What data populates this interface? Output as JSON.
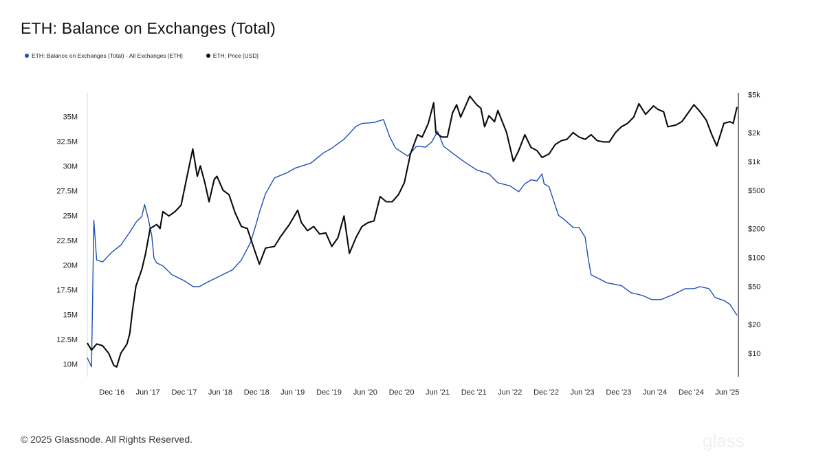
{
  "title": "ETH: Balance on Exchanges (Total)",
  "footer": "© 2025 Glassnode. All Rights Reserved.",
  "colors": {
    "balance": "#1c4fb5",
    "price": "#0a0a0a"
  },
  "chart_data": {
    "type": "line",
    "title": "ETH: Balance on Exchanges (Total)",
    "legend_position": "top-left",
    "grid": false,
    "x_ticks": [
      "Dec '16",
      "Jun '17",
      "Dec '17",
      "Jun '18",
      "Dec '18",
      "Jun '19",
      "Dec '19",
      "Jun '20",
      "Dec '20",
      "Jun '21",
      "Dec '21",
      "Jun '22",
      "Dec '22",
      "Jun '23",
      "Dec '23",
      "Jun '24",
      "Dec '24",
      "Jun '25"
    ],
    "x_range": [
      "2016-07-30",
      "2025-07-20"
    ],
    "y_left": {
      "scale": "linear",
      "range": [
        8700000,
        37400000
      ],
      "ticks": [
        10000000,
        12500000,
        15000000,
        17500000,
        20000000,
        22500000,
        25000000,
        27500000,
        30000000,
        32500000,
        35000000
      ],
      "tick_labels": [
        "10M",
        "12.5M",
        "15M",
        "17.5M",
        "20M",
        "22.5M",
        "25M",
        "27.5M",
        "30M",
        "32.5M",
        "35M"
      ]
    },
    "y_right": {
      "scale": "log",
      "range": [
        5.7,
        5200
      ],
      "ticks": [
        10,
        20,
        50,
        100,
        200,
        500,
        1000,
        2000,
        5000
      ],
      "tick_labels": [
        "$10",
        "$20",
        "$50",
        "$100",
        "$200",
        "$500",
        "$1k",
        "$2k",
        "$5k"
      ]
    },
    "series": [
      {
        "name": "ETH: Balance on Exchanges (Total) - All Exchanges [ETH]",
        "axis": "left",
        "points": [
          [
            "2016-07-30",
            10600000
          ],
          [
            "2016-08-20",
            9700000
          ],
          [
            "2016-09-01",
            24500000
          ],
          [
            "2016-09-15",
            20500000
          ],
          [
            "2016-10-15",
            20300000
          ],
          [
            "2016-12-01",
            21300000
          ],
          [
            "2017-01-15",
            22000000
          ],
          [
            "2017-03-01",
            23300000
          ],
          [
            "2017-04-01",
            24300000
          ],
          [
            "2017-05-01",
            24900000
          ],
          [
            "2017-05-15",
            26100000
          ],
          [
            "2017-06-01",
            24800000
          ],
          [
            "2017-06-20",
            23000000
          ],
          [
            "2017-07-01",
            20700000
          ],
          [
            "2017-07-15",
            20200000
          ],
          [
            "2017-08-15",
            19900000
          ],
          [
            "2017-10-01",
            19000000
          ],
          [
            "2017-12-01",
            18400000
          ],
          [
            "2018-01-15",
            17800000
          ],
          [
            "2018-02-15",
            17800000
          ],
          [
            "2018-04-01",
            18300000
          ],
          [
            "2018-06-01",
            18900000
          ],
          [
            "2018-08-01",
            19500000
          ],
          [
            "2018-09-15",
            20500000
          ],
          [
            "2018-11-01",
            22300000
          ],
          [
            "2018-12-01",
            24300000
          ],
          [
            "2018-12-15",
            25300000
          ],
          [
            "2019-01-15",
            27200000
          ],
          [
            "2019-03-01",
            28800000
          ],
          [
            "2019-05-01",
            29300000
          ],
          [
            "2019-06-15",
            29800000
          ],
          [
            "2019-09-01",
            30300000
          ],
          [
            "2019-11-01",
            31300000
          ],
          [
            "2019-12-15",
            31800000
          ],
          [
            "2020-02-15",
            32700000
          ],
          [
            "2020-04-15",
            34000000
          ],
          [
            "2020-05-15",
            34300000
          ],
          [
            "2020-07-15",
            34400000
          ],
          [
            "2020-09-01",
            34700000
          ],
          [
            "2020-10-01",
            33000000
          ],
          [
            "2020-11-01",
            31800000
          ],
          [
            "2020-12-01",
            31400000
          ],
          [
            "2021-01-01",
            31000000
          ],
          [
            "2021-02-15",
            32000000
          ],
          [
            "2021-04-01",
            31900000
          ],
          [
            "2021-05-01",
            32400000
          ],
          [
            "2021-06-01",
            33500000
          ],
          [
            "2021-07-01",
            32000000
          ],
          [
            "2021-08-15",
            31300000
          ],
          [
            "2021-10-15",
            30400000
          ],
          [
            "2021-12-15",
            29600000
          ],
          [
            "2022-02-15",
            29200000
          ],
          [
            "2022-04-01",
            28300000
          ],
          [
            "2022-06-01",
            28000000
          ],
          [
            "2022-07-15",
            27400000
          ],
          [
            "2022-08-15",
            28200000
          ],
          [
            "2022-09-15",
            28600000
          ],
          [
            "2022-10-15",
            28500000
          ],
          [
            "2022-11-10",
            29200000
          ],
          [
            "2022-11-20",
            28200000
          ],
          [
            "2022-12-15",
            27900000
          ],
          [
            "2023-01-15",
            26000000
          ],
          [
            "2023-02-01",
            25000000
          ],
          [
            "2023-03-01",
            24600000
          ],
          [
            "2023-04-15",
            23800000
          ],
          [
            "2023-05-15",
            23800000
          ],
          [
            "2023-06-15",
            22800000
          ],
          [
            "2023-07-01",
            20600000
          ],
          [
            "2023-07-15",
            19000000
          ],
          [
            "2023-08-15",
            18700000
          ],
          [
            "2023-10-01",
            18200000
          ],
          [
            "2023-12-15",
            17900000
          ],
          [
            "2024-02-01",
            17200000
          ],
          [
            "2024-04-01",
            16900000
          ],
          [
            "2024-05-15",
            16500000
          ],
          [
            "2024-07-01",
            16500000
          ],
          [
            "2024-09-01",
            17000000
          ],
          [
            "2024-11-01",
            17600000
          ],
          [
            "2024-12-15",
            17600000
          ],
          [
            "2025-01-15",
            17800000
          ],
          [
            "2025-03-01",
            17600000
          ],
          [
            "2025-04-01",
            16700000
          ],
          [
            "2025-05-15",
            16400000
          ],
          [
            "2025-06-15",
            16000000
          ],
          [
            "2025-07-20",
            14900000
          ]
        ]
      },
      {
        "name": "ETH: Price [USD]",
        "axis": "right",
        "points": [
          [
            "2016-07-30",
            12.8
          ],
          [
            "2016-08-20",
            10.8
          ],
          [
            "2016-09-15",
            12.5
          ],
          [
            "2016-10-15",
            12.0
          ],
          [
            "2016-11-15",
            10.0
          ],
          [
            "2016-12-10",
            7.5
          ],
          [
            "2016-12-25",
            7.2
          ],
          [
            "2017-01-15",
            10.0
          ],
          [
            "2017-02-15",
            12.5
          ],
          [
            "2017-03-01",
            16.0
          ],
          [
            "2017-03-15",
            28.0
          ],
          [
            "2017-04-01",
            50.0
          ],
          [
            "2017-05-01",
            75.0
          ],
          [
            "2017-05-20",
            110.0
          ],
          [
            "2017-06-12",
            200.0
          ],
          [
            "2017-07-15",
            220.0
          ],
          [
            "2017-08-01",
            200.0
          ],
          [
            "2017-08-15",
            300.0
          ],
          [
            "2017-09-15",
            270.0
          ],
          [
            "2017-10-15",
            300.0
          ],
          [
            "2017-11-15",
            350.0
          ],
          [
            "2017-12-15",
            700.0
          ],
          [
            "2018-01-13",
            1350.0
          ],
          [
            "2018-02-05",
            700.0
          ],
          [
            "2018-02-20",
            900.0
          ],
          [
            "2018-03-15",
            600.0
          ],
          [
            "2018-04-05",
            380.0
          ],
          [
            "2018-05-01",
            650.0
          ],
          [
            "2018-05-15",
            700.0
          ],
          [
            "2018-06-15",
            500.0
          ],
          [
            "2018-07-15",
            450.0
          ],
          [
            "2018-08-15",
            290.0
          ],
          [
            "2018-09-15",
            210.0
          ],
          [
            "2018-10-15",
            200.0
          ],
          [
            "2018-11-20",
            120.0
          ],
          [
            "2018-12-15",
            85.0
          ],
          [
            "2019-01-15",
            125.0
          ],
          [
            "2019-03-01",
            130.0
          ],
          [
            "2019-04-01",
            165.0
          ],
          [
            "2019-05-15",
            220.0
          ],
          [
            "2019-06-26",
            310.0
          ],
          [
            "2019-07-15",
            230.0
          ],
          [
            "2019-08-15",
            190.0
          ],
          [
            "2019-09-15",
            210.0
          ],
          [
            "2019-10-15",
            175.0
          ],
          [
            "2019-11-15",
            180.0
          ],
          [
            "2019-12-15",
            130.0
          ],
          [
            "2020-01-15",
            160.0
          ],
          [
            "2020-02-15",
            270.0
          ],
          [
            "2020-03-13",
            110.0
          ],
          [
            "2020-04-15",
            160.0
          ],
          [
            "2020-05-15",
            210.0
          ],
          [
            "2020-06-15",
            230.0
          ],
          [
            "2020-07-15",
            240.0
          ],
          [
            "2020-08-15",
            430.0
          ],
          [
            "2020-09-15",
            380.0
          ],
          [
            "2020-10-15",
            380.0
          ],
          [
            "2020-11-15",
            450.0
          ],
          [
            "2020-12-15",
            600.0
          ],
          [
            "2021-01-15",
            1200.0
          ],
          [
            "2021-02-20",
            1900.0
          ],
          [
            "2021-03-15",
            1800.0
          ],
          [
            "2021-04-15",
            2500.0
          ],
          [
            "2021-05-12",
            4100.0
          ],
          [
            "2021-05-23",
            2000.0
          ],
          [
            "2021-06-22",
            1800.0
          ],
          [
            "2021-07-20",
            1800.0
          ],
          [
            "2021-08-15",
            3200.0
          ],
          [
            "2021-09-05",
            3900.0
          ],
          [
            "2021-09-25",
            2900.0
          ],
          [
            "2021-11-10",
            4800.0
          ],
          [
            "2021-12-15",
            3900.0
          ],
          [
            "2022-01-05",
            3600.0
          ],
          [
            "2022-01-24",
            2300.0
          ],
          [
            "2022-02-15",
            3000.0
          ],
          [
            "2022-03-15",
            2600.0
          ],
          [
            "2022-04-01",
            3400.0
          ],
          [
            "2022-05-15",
            2000.0
          ],
          [
            "2022-06-18",
            1000.0
          ],
          [
            "2022-07-15",
            1300.0
          ],
          [
            "2022-08-15",
            1900.0
          ],
          [
            "2022-09-15",
            1400.0
          ],
          [
            "2022-10-15",
            1300.0
          ],
          [
            "2022-11-10",
            1100.0
          ],
          [
            "2022-12-15",
            1200.0
          ],
          [
            "2023-01-15",
            1500.0
          ],
          [
            "2023-02-15",
            1650.0
          ],
          [
            "2023-03-15",
            1700.0
          ],
          [
            "2023-04-15",
            2000.0
          ],
          [
            "2023-05-15",
            1800.0
          ],
          [
            "2023-06-15",
            1700.0
          ],
          [
            "2023-07-15",
            1900.0
          ],
          [
            "2023-08-15",
            1650.0
          ],
          [
            "2023-09-15",
            1600.0
          ],
          [
            "2023-10-15",
            1600.0
          ],
          [
            "2023-11-15",
            2000.0
          ],
          [
            "2023-12-15",
            2300.0
          ],
          [
            "2024-01-15",
            2500.0
          ],
          [
            "2024-02-15",
            2900.0
          ],
          [
            "2024-03-12",
            4000.0
          ],
          [
            "2024-04-15",
            3100.0
          ],
          [
            "2024-05-25",
            3800.0
          ],
          [
            "2024-06-15",
            3500.0
          ],
          [
            "2024-07-15",
            3300.0
          ],
          [
            "2024-08-05",
            2300.0
          ],
          [
            "2024-09-15",
            2400.0
          ],
          [
            "2024-10-15",
            2600.0
          ],
          [
            "2024-11-15",
            3200.0
          ],
          [
            "2024-12-15",
            3900.0
          ],
          [
            "2025-01-15",
            3300.0
          ],
          [
            "2025-02-15",
            2700.0
          ],
          [
            "2025-03-15",
            1900.0
          ],
          [
            "2025-04-09",
            1450.0
          ],
          [
            "2025-05-15",
            2500.0
          ],
          [
            "2025-06-15",
            2600.0
          ],
          [
            "2025-07-01",
            2500.0
          ],
          [
            "2025-07-20",
            3700.0
          ]
        ]
      }
    ]
  }
}
